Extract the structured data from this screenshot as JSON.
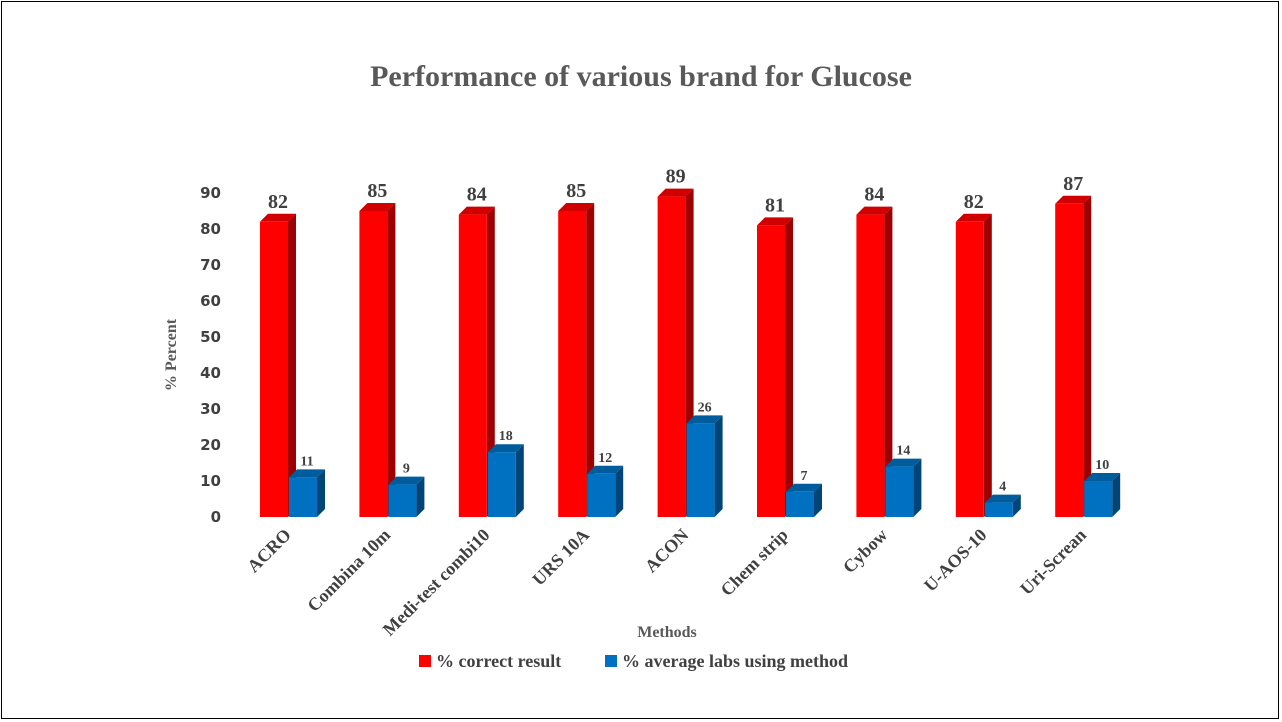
{
  "chart_data": {
    "type": "bar",
    "title": "Performance of various brand for Glucose",
    "xlabel": "Methods",
    "ylabel": "% Percent",
    "categories": [
      "ACRO",
      "Combina 10m",
      "Medi-test combi10",
      "URS 10A",
      "ACON",
      "Chem strip",
      "Cybow",
      "U-AOS-10",
      "Uri-Screan"
    ],
    "series": [
      {
        "name": "% correct result",
        "values": [
          82,
          85,
          84,
          85,
          89,
          81,
          84,
          82,
          87
        ],
        "color": "#ff0000"
      },
      {
        "name": "% average labs using method",
        "values": [
          11,
          9,
          18,
          12,
          26,
          7,
          14,
          4,
          10
        ],
        "color": "#0070c0"
      }
    ],
    "ylim": [
      0,
      90
    ],
    "yticks": [
      0,
      10,
      20,
      30,
      40,
      50,
      60,
      70,
      80,
      90
    ],
    "grid": false,
    "legend_position": "bottom",
    "style": "3d-clustered-bar"
  }
}
